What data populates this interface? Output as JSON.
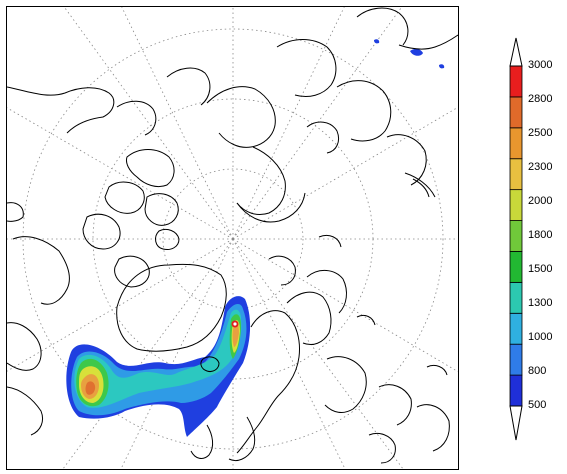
{
  "map": {
    "projection": "polar-stereographic",
    "graticule": "dotted",
    "field_colors": {
      "blue": "#1f3fe0",
      "light_blue": "#2f9be6",
      "cyan": "#2cc8c0",
      "green": "#3ec84a",
      "yellow": "#d8e03a",
      "orange": "#e8a040",
      "dark_orange": "#e07030",
      "red": "#e02020",
      "white": "#ffffff"
    }
  },
  "colorbar": {
    "levels": [
      "500",
      "800",
      "1000",
      "1300",
      "1500",
      "1800",
      "2000",
      "2300",
      "2500",
      "2800",
      "3000"
    ],
    "colors": [
      "#1f2fd8",
      "#2f7ce8",
      "#2fb0e0",
      "#2cc8b0",
      "#22b832",
      "#70c83a",
      "#c8d83a",
      "#e8c040",
      "#e8962e",
      "#e06a2a",
      "#e81e1e"
    ]
  }
}
